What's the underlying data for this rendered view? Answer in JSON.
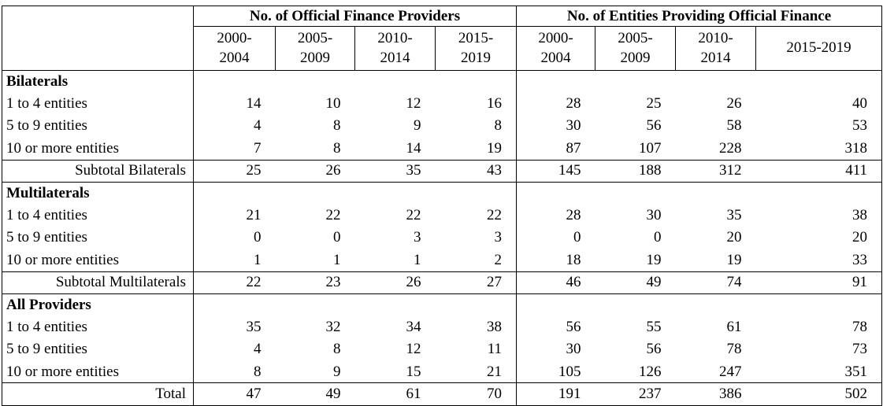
{
  "table": {
    "group_headers": [
      "No. of Official Finance Providers",
      "No. of Entities Providing Official Finance"
    ],
    "periods": [
      "2000-\n2004",
      "2005-\n2009",
      "2010-\n2014",
      "2015-\n2019",
      "2000-\n2004",
      "2005-\n2009",
      "2010-\n2014",
      "2015-2019"
    ],
    "rows": [
      {
        "type": "section",
        "label": "Bilaterals"
      },
      {
        "type": "data",
        "label": "1 to 4 entities",
        "values": [
          14,
          10,
          12,
          16,
          28,
          25,
          26,
          40
        ]
      },
      {
        "type": "data",
        "label": "5 to 9 entities",
        "values": [
          4,
          8,
          9,
          8,
          30,
          56,
          58,
          53
        ]
      },
      {
        "type": "data",
        "label": "10 or more entities",
        "values": [
          7,
          8,
          14,
          19,
          87,
          107,
          228,
          318
        ]
      },
      {
        "type": "subtotal",
        "label": "Subtotal Bilaterals",
        "values": [
          25,
          26,
          35,
          43,
          145,
          188,
          312,
          411
        ]
      },
      {
        "type": "section",
        "label": "Multilaterals"
      },
      {
        "type": "data",
        "label": "1 to 4 entities",
        "values": [
          21,
          22,
          22,
          22,
          28,
          30,
          35,
          38
        ]
      },
      {
        "type": "data",
        "label": "5 to 9 entities",
        "values": [
          0,
          0,
          3,
          3,
          0,
          0,
          20,
          20
        ]
      },
      {
        "type": "data",
        "label": "10 or more entities",
        "values": [
          1,
          1,
          1,
          2,
          18,
          19,
          19,
          33
        ]
      },
      {
        "type": "subtotal",
        "label": "Subtotal Multilaterals",
        "values": [
          22,
          23,
          26,
          27,
          46,
          49,
          74,
          91
        ]
      },
      {
        "type": "section",
        "label": "All Providers"
      },
      {
        "type": "data",
        "label": "1 to 4 entities",
        "values": [
          35,
          32,
          34,
          38,
          56,
          55,
          61,
          78
        ]
      },
      {
        "type": "data",
        "label": "5 to 9 entities",
        "values": [
          4,
          8,
          12,
          11,
          30,
          56,
          78,
          73
        ]
      },
      {
        "type": "data",
        "label": "10 or more entities",
        "values": [
          8,
          9,
          15,
          21,
          105,
          126,
          247,
          351
        ]
      },
      {
        "type": "subtotal",
        "label": "Total",
        "values": [
          47,
          49,
          61,
          70,
          191,
          237,
          386,
          502
        ]
      }
    ]
  }
}
